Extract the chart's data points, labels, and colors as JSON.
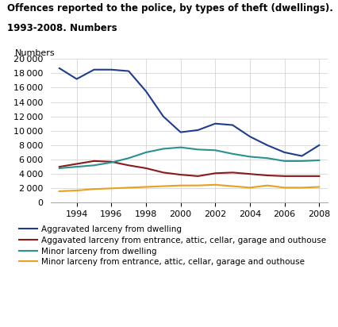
{
  "title_line1": "Offences reported to the police, by types of theft (dwellings).",
  "title_line2": "1993-2008. Numbers",
  "ylabel": "Numbers",
  "years": [
    1993,
    1994,
    1995,
    1996,
    1997,
    1998,
    1999,
    2000,
    2001,
    2002,
    2003,
    2004,
    2005,
    2006,
    2007,
    2008
  ],
  "series": [
    {
      "label": "Aggravated larceny from dwelling",
      "color": "#1f3d8c",
      "values": [
        18700,
        17200,
        18500,
        18500,
        18300,
        15500,
        12000,
        9800,
        10100,
        11000,
        10800,
        9200,
        8000,
        7000,
        6500,
        8000
      ]
    },
    {
      "label": "Aggavated larceny from entrance, attic, cellar, garage and outhouse",
      "color": "#8b1a1a",
      "values": [
        5000,
        5400,
        5800,
        5700,
        5200,
        4800,
        4200,
        3900,
        3700,
        4100,
        4200,
        4000,
        3800,
        3700,
        3700,
        3700
      ]
    },
    {
      "label": "Minor larceny from dwelling",
      "color": "#2a9090",
      "values": [
        4800,
        5000,
        5200,
        5600,
        6200,
        7000,
        7500,
        7700,
        7400,
        7300,
        6800,
        6400,
        6200,
        5800,
        5800,
        5900
      ]
    },
    {
      "label": "Minor larceny from entrance, attic, cellar, garage and outhouse",
      "color": "#e8a020",
      "values": [
        1600,
        1700,
        1900,
        2000,
        2100,
        2200,
        2300,
        2400,
        2400,
        2500,
        2300,
        2100,
        2400,
        2100,
        2100,
        2200
      ]
    }
  ],
  "xlim": [
    1993,
    2008
  ],
  "ylim": [
    0,
    20000
  ],
  "yticks": [
    0,
    2000,
    4000,
    6000,
    8000,
    10000,
    12000,
    14000,
    16000,
    18000,
    20000
  ],
  "xticks": [
    1994,
    1996,
    1998,
    2000,
    2002,
    2004,
    2006,
    2008
  ],
  "background_color": "#ffffff",
  "grid_color": "#cccccc"
}
